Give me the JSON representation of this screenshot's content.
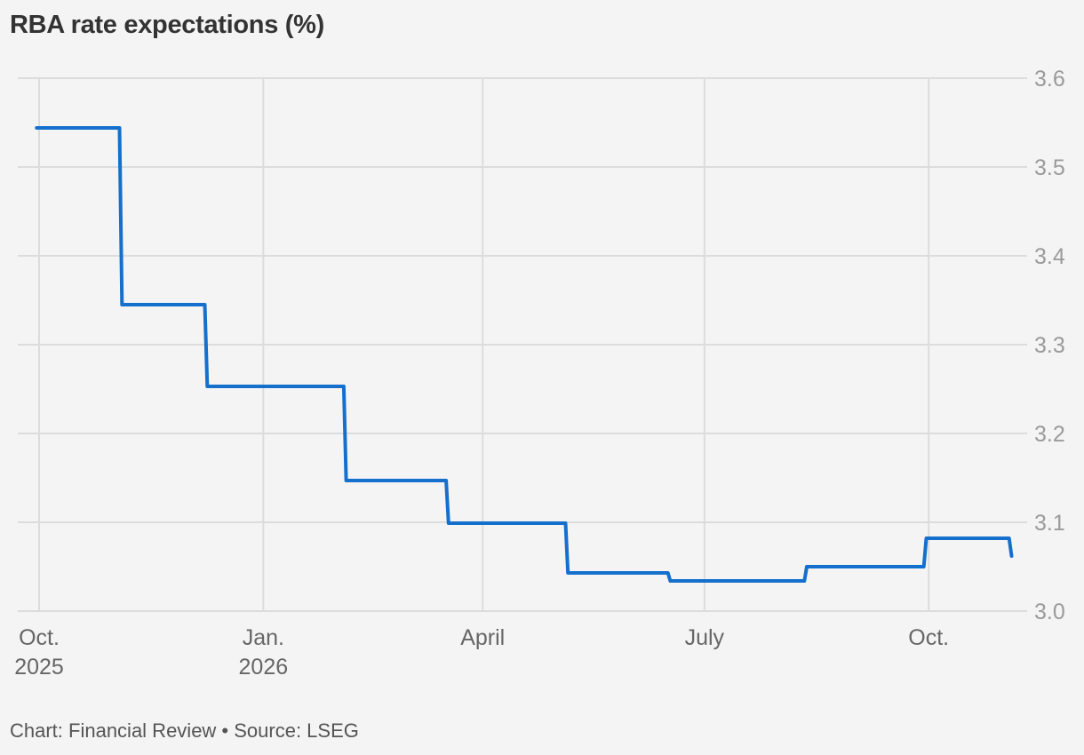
{
  "title": "RBA rate expectations (%)",
  "footer": "Chart: Financial Review • Source: LSEG",
  "colors": {
    "background": "#f4f4f4",
    "line": "#1570cd",
    "grid": "#dcdcdc",
    "title": "#333333",
    "axis_text": "#9a9a9a"
  },
  "chart_data": {
    "type": "line",
    "subtype": "step",
    "title": "RBA rate expectations (%)",
    "xlabel": "",
    "ylabel": "",
    "ylim": [
      3.0,
      3.6
    ],
    "yticks": [
      3.0,
      3.1,
      3.2,
      3.3,
      3.4,
      3.5,
      3.6
    ],
    "ytick_labels": [
      "3.0",
      "3.1",
      "3.2",
      "3.3",
      "3.4",
      "3.5",
      "3.6"
    ],
    "xticks": [
      {
        "label": [
          "Oct.",
          "2025"
        ],
        "date": "2025-10-01"
      },
      {
        "label": [
          "Jan.",
          "2026"
        ],
        "date": "2026-01-01"
      },
      {
        "label": [
          "April"
        ],
        "date": "2026-04-01"
      },
      {
        "label": [
          "July"
        ],
        "date": "2026-07-01"
      },
      {
        "label": [
          "Oct."
        ],
        "date": "2026-10-01"
      }
    ],
    "grid": true,
    "legend": null,
    "series": [
      {
        "name": "RBA rate expectations",
        "points": [
          {
            "x": "2025-09-30",
            "y": 3.544
          },
          {
            "x": "2025-11-03",
            "y": 3.544
          },
          {
            "x": "2025-11-04",
            "y": 3.345
          },
          {
            "x": "2025-12-08",
            "y": 3.345
          },
          {
            "x": "2025-12-09",
            "y": 3.253
          },
          {
            "x": "2026-02-03",
            "y": 3.253
          },
          {
            "x": "2026-02-04",
            "y": 3.147
          },
          {
            "x": "2026-03-17",
            "y": 3.147
          },
          {
            "x": "2026-03-18",
            "y": 3.099
          },
          {
            "x": "2026-05-05",
            "y": 3.099
          },
          {
            "x": "2026-05-06",
            "y": 3.043
          },
          {
            "x": "2026-06-16",
            "y": 3.043
          },
          {
            "x": "2026-06-17",
            "y": 3.034
          },
          {
            "x": "2026-08-11",
            "y": 3.034
          },
          {
            "x": "2026-08-12",
            "y": 3.05
          },
          {
            "x": "2026-09-29",
            "y": 3.05
          },
          {
            "x": "2026-09-30",
            "y": 3.082
          },
          {
            "x": "2026-11-03",
            "y": 3.082
          },
          {
            "x": "2026-11-04",
            "y": 3.062
          }
        ]
      }
    ]
  }
}
